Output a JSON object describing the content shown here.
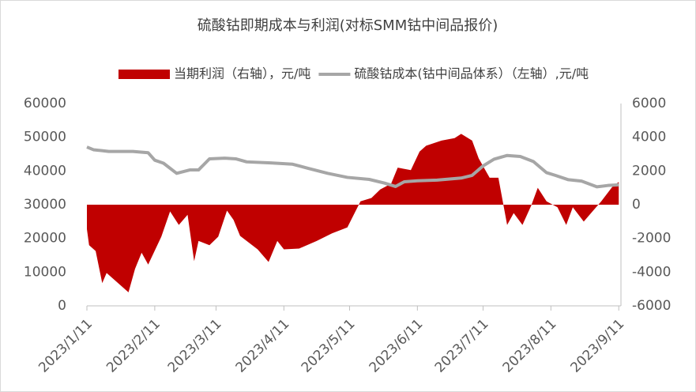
{
  "chart_data": {
    "type": "combo",
    "title": "硫酸钴即期成本与利润(对标SMM钴中间品报价)",
    "series": [
      {
        "name": "当期利润（右轴），元/吨",
        "type": "area",
        "axis": "y2",
        "color": "#c00000",
        "x": [
          "2023/1/11",
          "2023/1/12",
          "2023/1/15",
          "2023/1/18",
          "2023/1/20",
          "2023/1/30",
          "2023/2/2",
          "2023/2/5",
          "2023/2/8",
          "2023/2/14",
          "2023/2/18",
          "2023/2/22",
          "2023/2/26",
          "2023/3/1",
          "2023/3/3",
          "2023/3/8",
          "2023/3/12",
          "2023/3/16",
          "2023/3/19",
          "2023/3/22",
          "2023/3/30",
          "2023/4/4",
          "2023/4/8",
          "2023/4/11",
          "2023/4/18",
          "2023/4/26",
          "2023/5/3",
          "2023/5/10",
          "2023/5/16",
          "2023/5/21",
          "2023/5/25",
          "2023/5/30",
          "2023/6/2",
          "2023/6/8",
          "2023/6/12",
          "2023/6/15",
          "2023/6/22",
          "2023/6/28",
          "2023/7/1",
          "2023/7/6",
          "2023/7/9",
          "2023/7/14",
          "2023/7/18",
          "2023/7/22",
          "2023/7/25",
          "2023/7/29",
          "2023/8/2",
          "2023/8/5",
          "2023/8/9",
          "2023/8/14",
          "2023/8/18",
          "2023/8/21",
          "2023/8/26",
          "2023/8/30",
          "2023/9/3",
          "2023/9/8",
          "2023/9/11"
        ],
        "values": [
          -1450,
          -2400,
          -2750,
          -4650,
          -4050,
          -5200,
          -3800,
          -2850,
          -3550,
          -1900,
          -400,
          -1200,
          -600,
          -3350,
          -2150,
          -2400,
          -1900,
          -350,
          -900,
          -1850,
          -2650,
          -3400,
          -2150,
          -2650,
          -2600,
          -2150,
          -1700,
          -1350,
          200,
          400,
          900,
          1250,
          2200,
          2050,
          3150,
          3500,
          3800,
          3950,
          4200,
          3800,
          2750,
          1600,
          1600,
          -1200,
          -500,
          -1200,
          -50,
          1000,
          200,
          -150,
          -1200,
          -150,
          -1000,
          -400,
          200,
          1050,
          1350
        ]
      },
      {
        "name": "硫酸钴成本(钴中间品体系）（左轴）,元/吨",
        "type": "line",
        "axis": "y",
        "color": "#a6a6a6",
        "x": [
          "2023/1/11",
          "2023/1/14",
          "2023/1/21",
          "2023/2/1",
          "2023/2/8",
          "2023/2/11",
          "2023/2/15",
          "2023/2/21",
          "2023/2/27",
          "2023/3/3",
          "2023/3/8",
          "2023/3/15",
          "2023/3/20",
          "2023/3/25",
          "2023/4/5",
          "2023/4/15",
          "2023/4/22",
          "2023/5/1",
          "2023/5/10",
          "2023/5/20",
          "2023/5/27",
          "2023/6/1",
          "2023/6/5",
          "2023/6/11",
          "2023/6/20",
          "2023/7/1",
          "2023/7/6",
          "2023/7/11",
          "2023/7/16",
          "2023/7/22",
          "2023/7/28",
          "2023/8/3",
          "2023/8/9",
          "2023/8/13",
          "2023/8/19",
          "2023/8/25",
          "2023/9/1",
          "2023/9/6",
          "2023/9/11"
        ],
        "values": [
          47100,
          46300,
          45800,
          45800,
          45400,
          43200,
          42300,
          39300,
          40300,
          40300,
          43600,
          43800,
          43600,
          42700,
          42400,
          42000,
          40800,
          39300,
          38100,
          37500,
          36400,
          35400,
          36800,
          37100,
          37300,
          37900,
          38700,
          41500,
          43500,
          44600,
          44300,
          42800,
          39500,
          38700,
          37400,
          37000,
          35300,
          35700,
          35900
        ]
      }
    ],
    "xlim": [
      "2023/1/11",
      "2023/9/12"
    ],
    "xticks": [
      "2023/1/11",
      "2023/2/11",
      "2023/3/11",
      "2023/4/11",
      "2023/5/11",
      "2023/6/11",
      "2023/7/11",
      "2023/8/11",
      "2023/9/11"
    ],
    "ylim": [
      0,
      60000
    ],
    "yticks": [
      0,
      10000,
      20000,
      30000,
      40000,
      50000,
      60000
    ],
    "y2lim": [
      -6000,
      6000
    ],
    "y2ticks": [
      -6000,
      -4000,
      -2000,
      0,
      2000,
      4000,
      6000
    ],
    "legend": "top"
  }
}
